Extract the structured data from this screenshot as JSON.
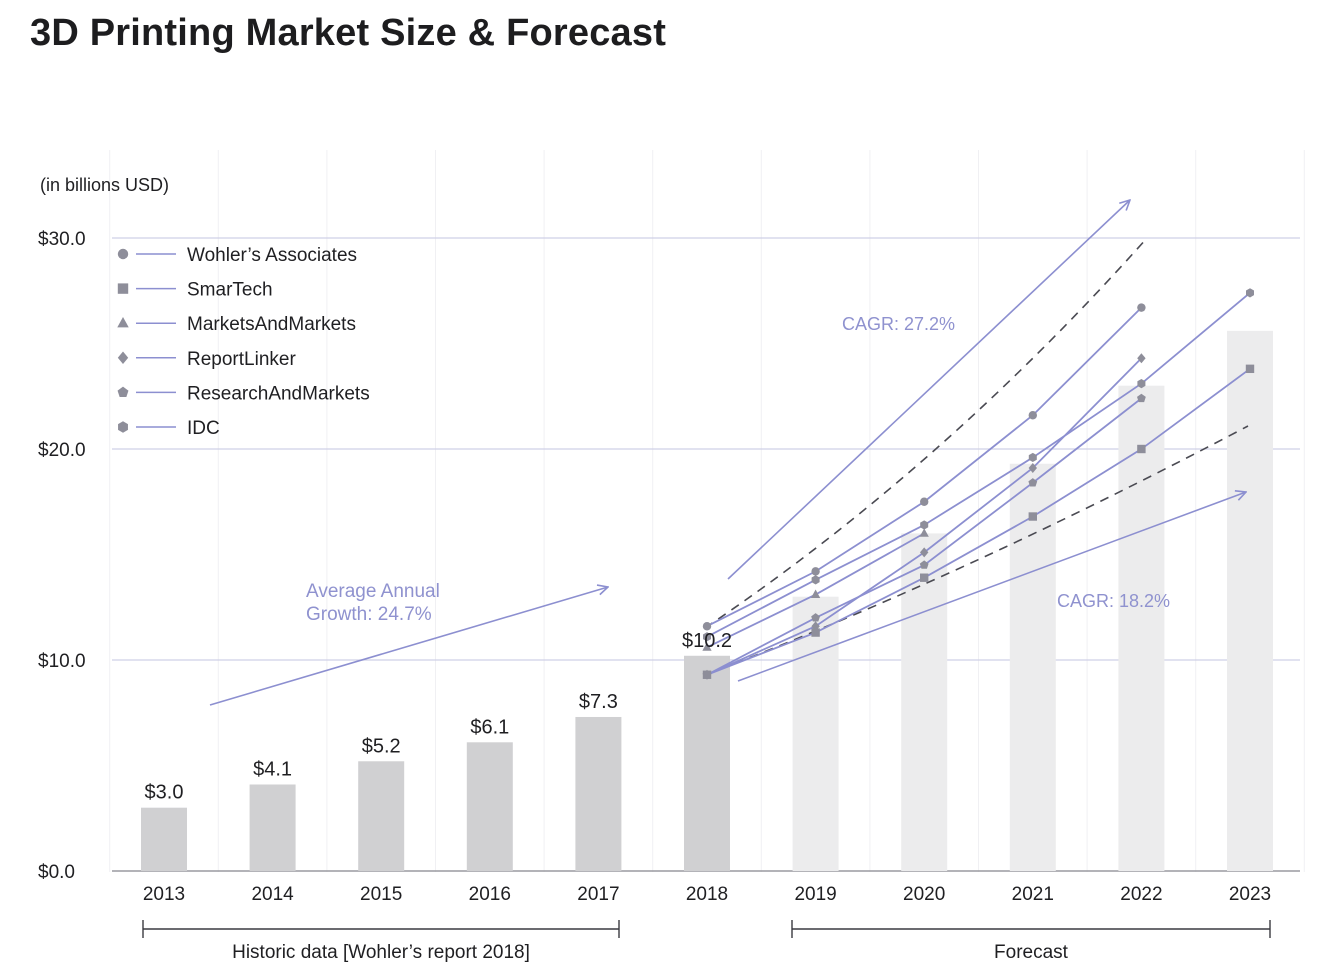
{
  "chart_data": {
    "type": "bar",
    "title": "3D Printing Market Size & Forecast",
    "ylabel": "(in billions USD)",
    "ylim": [
      0,
      30
    ],
    "y_ticks": [
      "$0.0",
      "$10.0",
      "$20.0",
      "$30.0"
    ],
    "y_tick_values": [
      0,
      10,
      20,
      30
    ],
    "categories": [
      "2013",
      "2014",
      "2015",
      "2016",
      "2017",
      "2018",
      "2019",
      "2020",
      "2021",
      "2022",
      "2023"
    ],
    "bars": [
      {
        "year": "2013",
        "value": 3.0,
        "label": "$3.0",
        "kind": "historic"
      },
      {
        "year": "2014",
        "value": 4.1,
        "label": "$4.1",
        "kind": "historic"
      },
      {
        "year": "2015",
        "value": 5.2,
        "label": "$5.2",
        "kind": "historic"
      },
      {
        "year": "2016",
        "value": 6.1,
        "label": "$6.1",
        "kind": "historic"
      },
      {
        "year": "2017",
        "value": 7.3,
        "label": "$7.3",
        "kind": "historic"
      },
      {
        "year": "2018",
        "value": 10.2,
        "label": "$10.2",
        "kind": "historic"
      },
      {
        "year": "2019",
        "value": 13.0,
        "label": "",
        "kind": "forecast"
      },
      {
        "year": "2020",
        "value": 16.0,
        "label": "",
        "kind": "forecast"
      },
      {
        "year": "2021",
        "value": 19.3,
        "label": "",
        "kind": "forecast"
      },
      {
        "year": "2022",
        "value": 23.0,
        "label": "",
        "kind": "forecast"
      },
      {
        "year": "2023",
        "value": 25.6,
        "label": "",
        "kind": "forecast"
      }
    ],
    "series": [
      {
        "name": "Wohler’s Associates",
        "marker": "circle",
        "points": [
          [
            "2018",
            11.6
          ],
          [
            "2019",
            14.2
          ],
          [
            "2020",
            17.5
          ],
          [
            "2021",
            21.6
          ],
          [
            "2022",
            26.7
          ]
        ]
      },
      {
        "name": "SmarTech",
        "marker": "square",
        "points": [
          [
            "2018",
            9.3
          ],
          [
            "2019",
            11.3
          ],
          [
            "2020",
            13.9
          ],
          [
            "2021",
            16.8
          ],
          [
            "2022",
            20.0
          ],
          [
            "2023",
            23.8
          ]
        ]
      },
      {
        "name": "MarketsAndMarkets",
        "marker": "triangle",
        "points": [
          [
            "2018",
            10.6
          ],
          [
            "2019",
            13.1
          ],
          [
            "2020",
            16.0
          ]
        ]
      },
      {
        "name": "ReportLinker",
        "marker": "diamond",
        "points": [
          [
            "2018",
            9.3
          ],
          [
            "2019",
            11.6
          ],
          [
            "2020",
            15.1
          ],
          [
            "2021",
            19.1
          ],
          [
            "2022",
            24.3
          ]
        ]
      },
      {
        "name": "ResearchAndMarkets",
        "marker": "pentagon",
        "points": [
          [
            "2018",
            9.3
          ],
          [
            "2019",
            12.0
          ],
          [
            "2020",
            14.5
          ],
          [
            "2021",
            18.4
          ],
          [
            "2022",
            22.4
          ]
        ]
      },
      {
        "name": "IDC",
        "marker": "hexagon",
        "points": [
          [
            "2018",
            11.1
          ],
          [
            "2019",
            13.8
          ],
          [
            "2020",
            16.4
          ],
          [
            "2021",
            19.6
          ],
          [
            "2022",
            23.1
          ],
          [
            "2023",
            27.4
          ]
        ]
      }
    ],
    "annotations": {
      "avg_growth": "Average Annual\nGrowth: 24.7%",
      "cagr_high": "CAGR: 27.2%",
      "cagr_low": "CAGR: 18.2%"
    },
    "brackets": {
      "historic": "Historic data [Wohler’s report 2018]",
      "forecast": "Forecast"
    },
    "colors": {
      "series": "#8c8fd0",
      "annotation": "#8f92cf",
      "marker": "#8e8e9a",
      "bar_historic": "#d0d0d2",
      "bar_forecast": "#ececed",
      "grid": "#cfd0e6",
      "text": "#1f1f22"
    },
    "legend_position": "top-left",
    "grid": true
  }
}
